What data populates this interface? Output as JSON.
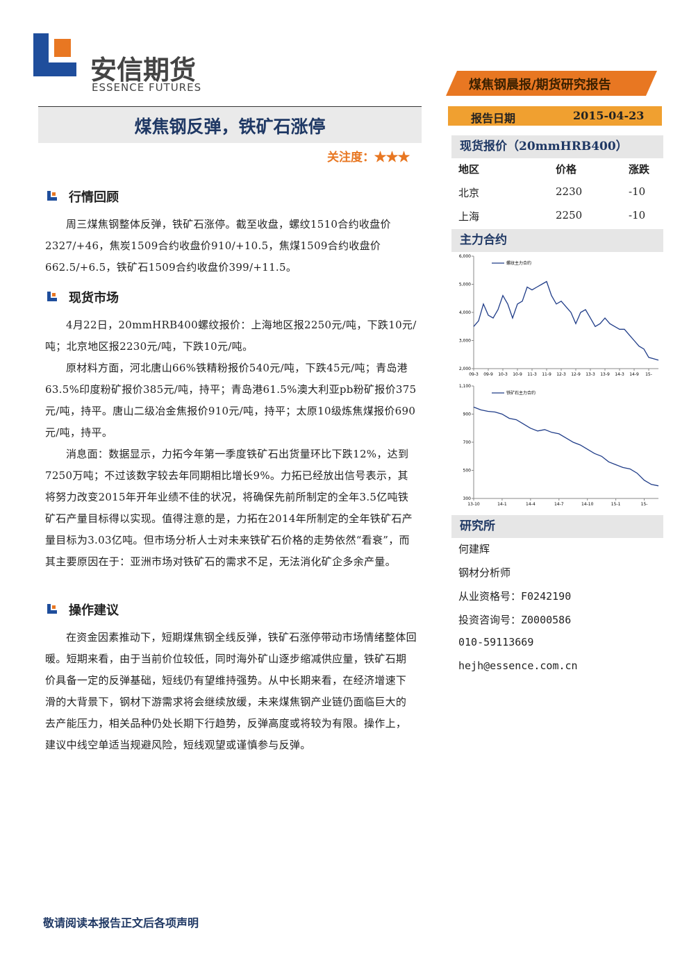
{
  "header": {
    "logo_cn": "安信期货",
    "logo_en": "ESSENCE FUTURES",
    "report_type": "煤焦钢晨报/期货研究报告",
    "date_label": "报告日期",
    "date": "2015-04-23"
  },
  "title": "煤焦钢反弹，铁矿石涨停",
  "attention": "关注度：★★★",
  "sections": [
    {
      "heading": "行情回顾",
      "paragraphs": [
        "周三煤焦钢整体反弹，铁矿石涨停。截至收盘，螺纹1510合约收盘价2327/+46，焦炭1509合约收盘价910/+10.5，焦煤1509合约收盘价662.5/+6.5，铁矿石1509合约收盘价399/+11.5。"
      ]
    },
    {
      "heading": "现货市场",
      "paragraphs": [
        "4月22日，20mmHRB400螺纹报价：上海地区报2250元/吨，下跌10元/吨；北京地区报2230元/吨，下跌10元/吨。",
        "原材料方面，河北唐山66%铁精粉报价540元/吨，下跌45元/吨；青岛港63.5%印度粉矿报价385元/吨，持平；青岛港61.5%澳大利亚pb粉矿报价375元/吨，持平。唐山二级冶金焦报价910元/吨，持平；太原10级炼焦煤报价690元/吨，持平。",
        "消息面：数据显示，力拓今年第一季度铁矿石出货量环比下跌12%，达到7250万吨；不过该数字较去年同期相比增长9%。力拓已经放出信号表示，其将努力改变2015年开年业绩不佳的状况，将确保先前所制定的全年3.5亿吨铁矿石产量目标得以实现。值得注意的是，力拓在2014年所制定的全年铁矿石产量目标为3.03亿吨。但市场分析人士对未来铁矿石价格的走势依然“看衰”，而其主要原因在于：亚洲市场对铁矿石的需求不足，无法消化矿企多余产量。"
      ]
    },
    {
      "heading": "操作建议",
      "paragraphs": [
        "在资金因素推动下，短期煤焦钢全线反弹，铁矿石涨停带动市场情绪整体回暖。短期来看，由于当前价位较低，同时海外矿山逐步缩减供应量，铁矿石期价具备一定的反弹基础，短线仍有望维持强势。从中长期来看，在经济增速下滑的大背景下，钢材下游需求将会继续放缓，未来煤焦钢产业链仍面临巨大的去产能压力，相关品种仍处长期下行趋势，反弹高度或将较为有限。操作上，建议中线空单适当规避风险，短线观望或谨慎参与反弹。"
      ]
    }
  ],
  "spot": {
    "title": "现货报价（20mmHRB400）",
    "columns": [
      "地区",
      "价格",
      "涨跌"
    ],
    "rows": [
      [
        "北京",
        "2230",
        "-10"
      ],
      [
        "上海",
        "2250",
        "-10"
      ]
    ]
  },
  "contracts_heading": "主力合约",
  "charts": [
    {
      "type": "line",
      "series_name": "螺纹主力合约",
      "color": "#1f3c88",
      "categories": [
        "09-3",
        null,
        null,
        "09-9",
        null,
        null,
        "10-3",
        null,
        null,
        "10-9",
        null,
        null,
        "11-3",
        null,
        null,
        "11-9",
        null,
        null,
        "12-3",
        null,
        null,
        "12-9",
        null,
        null,
        "13-3",
        null,
        null,
        "13-9",
        null,
        null,
        "14-3",
        null,
        null,
        "14-9",
        null,
        null,
        "15-",
        null,
        null
      ],
      "values": [
        3500,
        3700,
        4300,
        3900,
        3800,
        4100,
        4600,
        4300,
        3800,
        4300,
        4400,
        4900,
        4800,
        4900,
        5000,
        5100,
        4600,
        4300,
        4400,
        4200,
        4000,
        3600,
        4000,
        4100,
        3800,
        3500,
        3600,
        3800,
        3600,
        3500,
        3400,
        3400,
        3200,
        3000,
        2800,
        2700,
        2400,
        2350,
        2300
      ],
      "ylim": [
        2000,
        6000
      ],
      "yticks": [
        {
          "value": 2000,
          "label": "2,000"
        },
        {
          "value": 3000,
          "label": "3,000"
        },
        {
          "value": 4000,
          "label": "4,000"
        },
        {
          "value": 5000,
          "label": "5,000"
        },
        {
          "value": 6000,
          "label": "6,000"
        }
      ]
    },
    {
      "type": "line",
      "series_name": "铁矿石主力合约",
      "color": "#1f3c88",
      "categories": [
        "13-10",
        null,
        null,
        null,
        "14-1",
        null,
        null,
        null,
        "14-4",
        null,
        null,
        null,
        "14-7",
        null,
        null,
        null,
        "14-10",
        null,
        null,
        null,
        "15-1",
        null,
        null,
        null,
        "15-",
        null,
        null
      ],
      "values": [
        950,
        930,
        920,
        915,
        900,
        870,
        860,
        830,
        800,
        780,
        790,
        770,
        760,
        730,
        700,
        680,
        650,
        620,
        600,
        560,
        540,
        520,
        510,
        480,
        430,
        400,
        390
      ],
      "ylim": [
        300,
        1100
      ],
      "yticks": [
        300,
        500,
        700,
        900,
        {
          "value": 1100,
          "label": "1,100"
        }
      ]
    }
  ],
  "research": {
    "heading": "研究所",
    "lines": [
      "何建辉",
      "钢材分析师",
      "从业资格号：F0242190",
      "投资咨询号：Z0000586",
      "010-59113669",
      "hejh@essence.com.cn"
    ]
  },
  "footer": "敬请阅读本报告正文后各项声明"
}
